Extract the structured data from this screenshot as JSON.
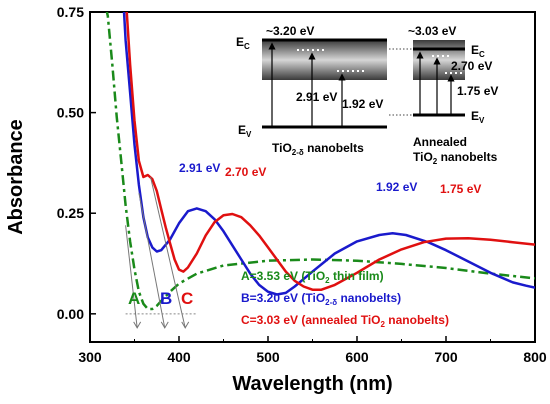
{
  "chart_data": {
    "type": "line",
    "xlabel": "Wavelength (nm)",
    "ylabel": "Absorbance",
    "xlim": [
      300,
      800
    ],
    "ylim": [
      -0.07,
      0.75
    ],
    "x_ticks": [
      300,
      400,
      500,
      600,
      700,
      800
    ],
    "y_ticks": [
      0.0,
      0.25,
      0.5,
      0.75
    ],
    "y_tick_labels": [
      "0.00",
      "0.25",
      "0.50",
      "0.75"
    ],
    "grid": false,
    "series": [
      {
        "key": "green",
        "color": "#1a8a1a",
        "style": "dashdot",
        "points": [
          [
            318,
            0.76
          ],
          [
            320,
            0.74
          ],
          [
            325,
            0.62
          ],
          [
            330,
            0.49
          ],
          [
            335,
            0.38
          ],
          [
            340,
            0.27
          ],
          [
            345,
            0.18
          ],
          [
            350,
            0.11
          ],
          [
            355,
            0.055
          ],
          [
            360,
            0.025
          ],
          [
            365,
            0.012
          ],
          [
            370,
            0.012
          ],
          [
            375,
            0.02
          ],
          [
            380,
            0.032
          ],
          [
            390,
            0.055
          ],
          [
            400,
            0.075
          ],
          [
            420,
            0.1
          ],
          [
            450,
            0.12
          ],
          [
            500,
            0.132
          ],
          [
            550,
            0.135
          ],
          [
            600,
            0.132
          ],
          [
            650,
            0.124
          ],
          [
            700,
            0.114
          ],
          [
            750,
            0.1
          ],
          [
            800,
            0.088
          ]
        ]
      },
      {
        "key": "blue",
        "color": "#1a1acc",
        "style": "solid",
        "points": [
          [
            338,
            0.76
          ],
          [
            340,
            0.68
          ],
          [
            345,
            0.55
          ],
          [
            350,
            0.42
          ],
          [
            355,
            0.32
          ],
          [
            360,
            0.24
          ],
          [
            365,
            0.19
          ],
          [
            370,
            0.165
          ],
          [
            375,
            0.155
          ],
          [
            380,
            0.158
          ],
          [
            390,
            0.185
          ],
          [
            400,
            0.225
          ],
          [
            410,
            0.255
          ],
          [
            420,
            0.262
          ],
          [
            430,
            0.255
          ],
          [
            440,
            0.235
          ],
          [
            450,
            0.205
          ],
          [
            460,
            0.17
          ],
          [
            470,
            0.135
          ],
          [
            480,
            0.1
          ],
          [
            490,
            0.072
          ],
          [
            500,
            0.055
          ],
          [
            510,
            0.048
          ],
          [
            520,
            0.052
          ],
          [
            530,
            0.068
          ],
          [
            550,
            0.105
          ],
          [
            575,
            0.15
          ],
          [
            600,
            0.18
          ],
          [
            625,
            0.196
          ],
          [
            640,
            0.2
          ],
          [
            655,
            0.196
          ],
          [
            680,
            0.178
          ],
          [
            700,
            0.158
          ],
          [
            725,
            0.13
          ],
          [
            750,
            0.102
          ],
          [
            775,
            0.078
          ],
          [
            790,
            0.07
          ],
          [
            800,
            0.065
          ]
        ]
      },
      {
        "key": "red",
        "color": "#e01010",
        "style": "solid",
        "points": [
          [
            341,
            0.76
          ],
          [
            345,
            0.62
          ],
          [
            350,
            0.48
          ],
          [
            355,
            0.38
          ],
          [
            360,
            0.34
          ],
          [
            365,
            0.345
          ],
          [
            370,
            0.335
          ],
          [
            375,
            0.305
          ],
          [
            380,
            0.26
          ],
          [
            385,
            0.215
          ],
          [
            390,
            0.175
          ],
          [
            395,
            0.135
          ],
          [
            400,
            0.11
          ],
          [
            405,
            0.105
          ],
          [
            410,
            0.115
          ],
          [
            420,
            0.15
          ],
          [
            430,
            0.195
          ],
          [
            440,
            0.228
          ],
          [
            450,
            0.245
          ],
          [
            460,
            0.248
          ],
          [
            470,
            0.24
          ],
          [
            480,
            0.22
          ],
          [
            490,
            0.195
          ],
          [
            500,
            0.165
          ],
          [
            510,
            0.135
          ],
          [
            520,
            0.105
          ],
          [
            530,
            0.082
          ],
          [
            540,
            0.068
          ],
          [
            550,
            0.06
          ],
          [
            560,
            0.06
          ],
          [
            575,
            0.072
          ],
          [
            600,
            0.102
          ],
          [
            625,
            0.135
          ],
          [
            650,
            0.16
          ],
          [
            675,
            0.178
          ],
          [
            700,
            0.187
          ],
          [
            725,
            0.188
          ],
          [
            750,
            0.184
          ],
          [
            775,
            0.178
          ],
          [
            800,
            0.172
          ]
        ]
      }
    ],
    "peak_labels": [
      {
        "text": "2.91 eV",
        "x": 425,
        "y": 0.262,
        "series": "blue"
      },
      {
        "text": "2.70 eV",
        "x": 463,
        "y": 0.248,
        "series": "red"
      },
      {
        "text": "1.92 eV",
        "x": 642,
        "y": 0.2,
        "series": "blue"
      },
      {
        "text": "1.75 eV",
        "x": 710,
        "y": 0.188,
        "series": "red"
      }
    ],
    "onsets": [
      {
        "letter": "A",
        "x": 353,
        "color": "#1a8a1a"
      },
      {
        "letter": "B",
        "x": 384,
        "color": "#1a1acc"
      },
      {
        "letter": "C",
        "x": 407,
        "color": "#e01010"
      }
    ],
    "legend": [
      {
        "text": "A=3.53 eV (TiO",
        "sub": "2",
        "tail": " thin film)",
        "color": "#1a8a1a"
      },
      {
        "text": "B=3.20 eV (TiO",
        "sub": "2-δ",
        "tail": " nanobelts)",
        "color": "#1a1acc"
      },
      {
        "text": "C=3.03 eV (annealed TiO",
        "sub": "2",
        "tail": " nanobelts)",
        "color": "#e01010"
      }
    ],
    "inset": {
      "left": {
        "ec": "E",
        "ec_sub": "C",
        "ev": "E",
        "ev_sub": "V",
        "gap": "~3.20 eV",
        "e1": "2.91 eV",
        "e2": "1.92 eV",
        "caption": "TiO",
        "caption_sub": "2-δ",
        "caption_tail": " nanobelts"
      },
      "right": {
        "ec": "E",
        "ec_sub": "C",
        "ev": "E",
        "ev_sub": "V",
        "gap": "~3.03 eV",
        "e1": "2.70 eV",
        "e2": "1.75 eV",
        "caption1": "Annealed",
        "caption2": "TiO",
        "caption2_sub": "2",
        "caption2_tail": " nanobelts"
      }
    }
  }
}
